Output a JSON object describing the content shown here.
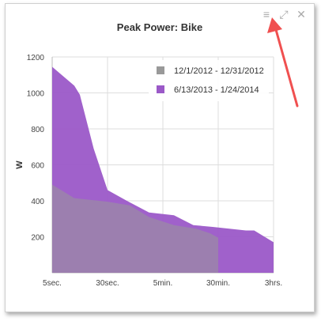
{
  "window": {
    "title": "Peak Power: Bike",
    "controls": [
      {
        "name": "menu-icon",
        "glyph": "≡"
      },
      {
        "name": "expand-icon",
        "glyph": "⤢"
      },
      {
        "name": "close-icon",
        "glyph": "✕"
      }
    ]
  },
  "chart_data": {
    "type": "area",
    "title": "Peak Power: Bike",
    "ylabel": "W",
    "xlabel": "",
    "ylim": [
      0,
      1200
    ],
    "y_ticks": [
      200,
      400,
      600,
      800,
      1000,
      1200
    ],
    "x_tick_labels": [
      "5sec.",
      "30sec.",
      "5min.",
      "30min.",
      "3hrs."
    ],
    "x_tick_positions": [
      0,
      1,
      2,
      3,
      4
    ],
    "grid": true,
    "legend_position": "top-right",
    "series": [
      {
        "name": "12/1/2012 - 12/31/2012",
        "color": "#999999",
        "points": [
          {
            "x": 0.0,
            "y": 490
          },
          {
            "x": 0.4,
            "y": 415
          },
          {
            "x": 1.0,
            "y": 395
          },
          {
            "x": 1.4,
            "y": 375
          },
          {
            "x": 1.75,
            "y": 310
          },
          {
            "x": 2.2,
            "y": 265
          },
          {
            "x": 2.6,
            "y": 245
          },
          {
            "x": 2.85,
            "y": 220
          },
          {
            "x": 3.0,
            "y": 195
          }
        ]
      },
      {
        "name": "6/13/2013 - 1/24/2014",
        "color": "#9b59c8",
        "points": [
          {
            "x": 0.0,
            "y": 1145
          },
          {
            "x": 0.4,
            "y": 1040
          },
          {
            "x": 0.5,
            "y": 990
          },
          {
            "x": 0.75,
            "y": 690
          },
          {
            "x": 1.0,
            "y": 460
          },
          {
            "x": 1.35,
            "y": 400
          },
          {
            "x": 1.75,
            "y": 335
          },
          {
            "x": 2.2,
            "y": 320
          },
          {
            "x": 2.55,
            "y": 265
          },
          {
            "x": 2.9,
            "y": 255
          },
          {
            "x": 3.2,
            "y": 245
          },
          {
            "x": 3.5,
            "y": 235
          },
          {
            "x": 3.65,
            "y": 235
          },
          {
            "x": 4.0,
            "y": 170
          }
        ]
      }
    ]
  }
}
